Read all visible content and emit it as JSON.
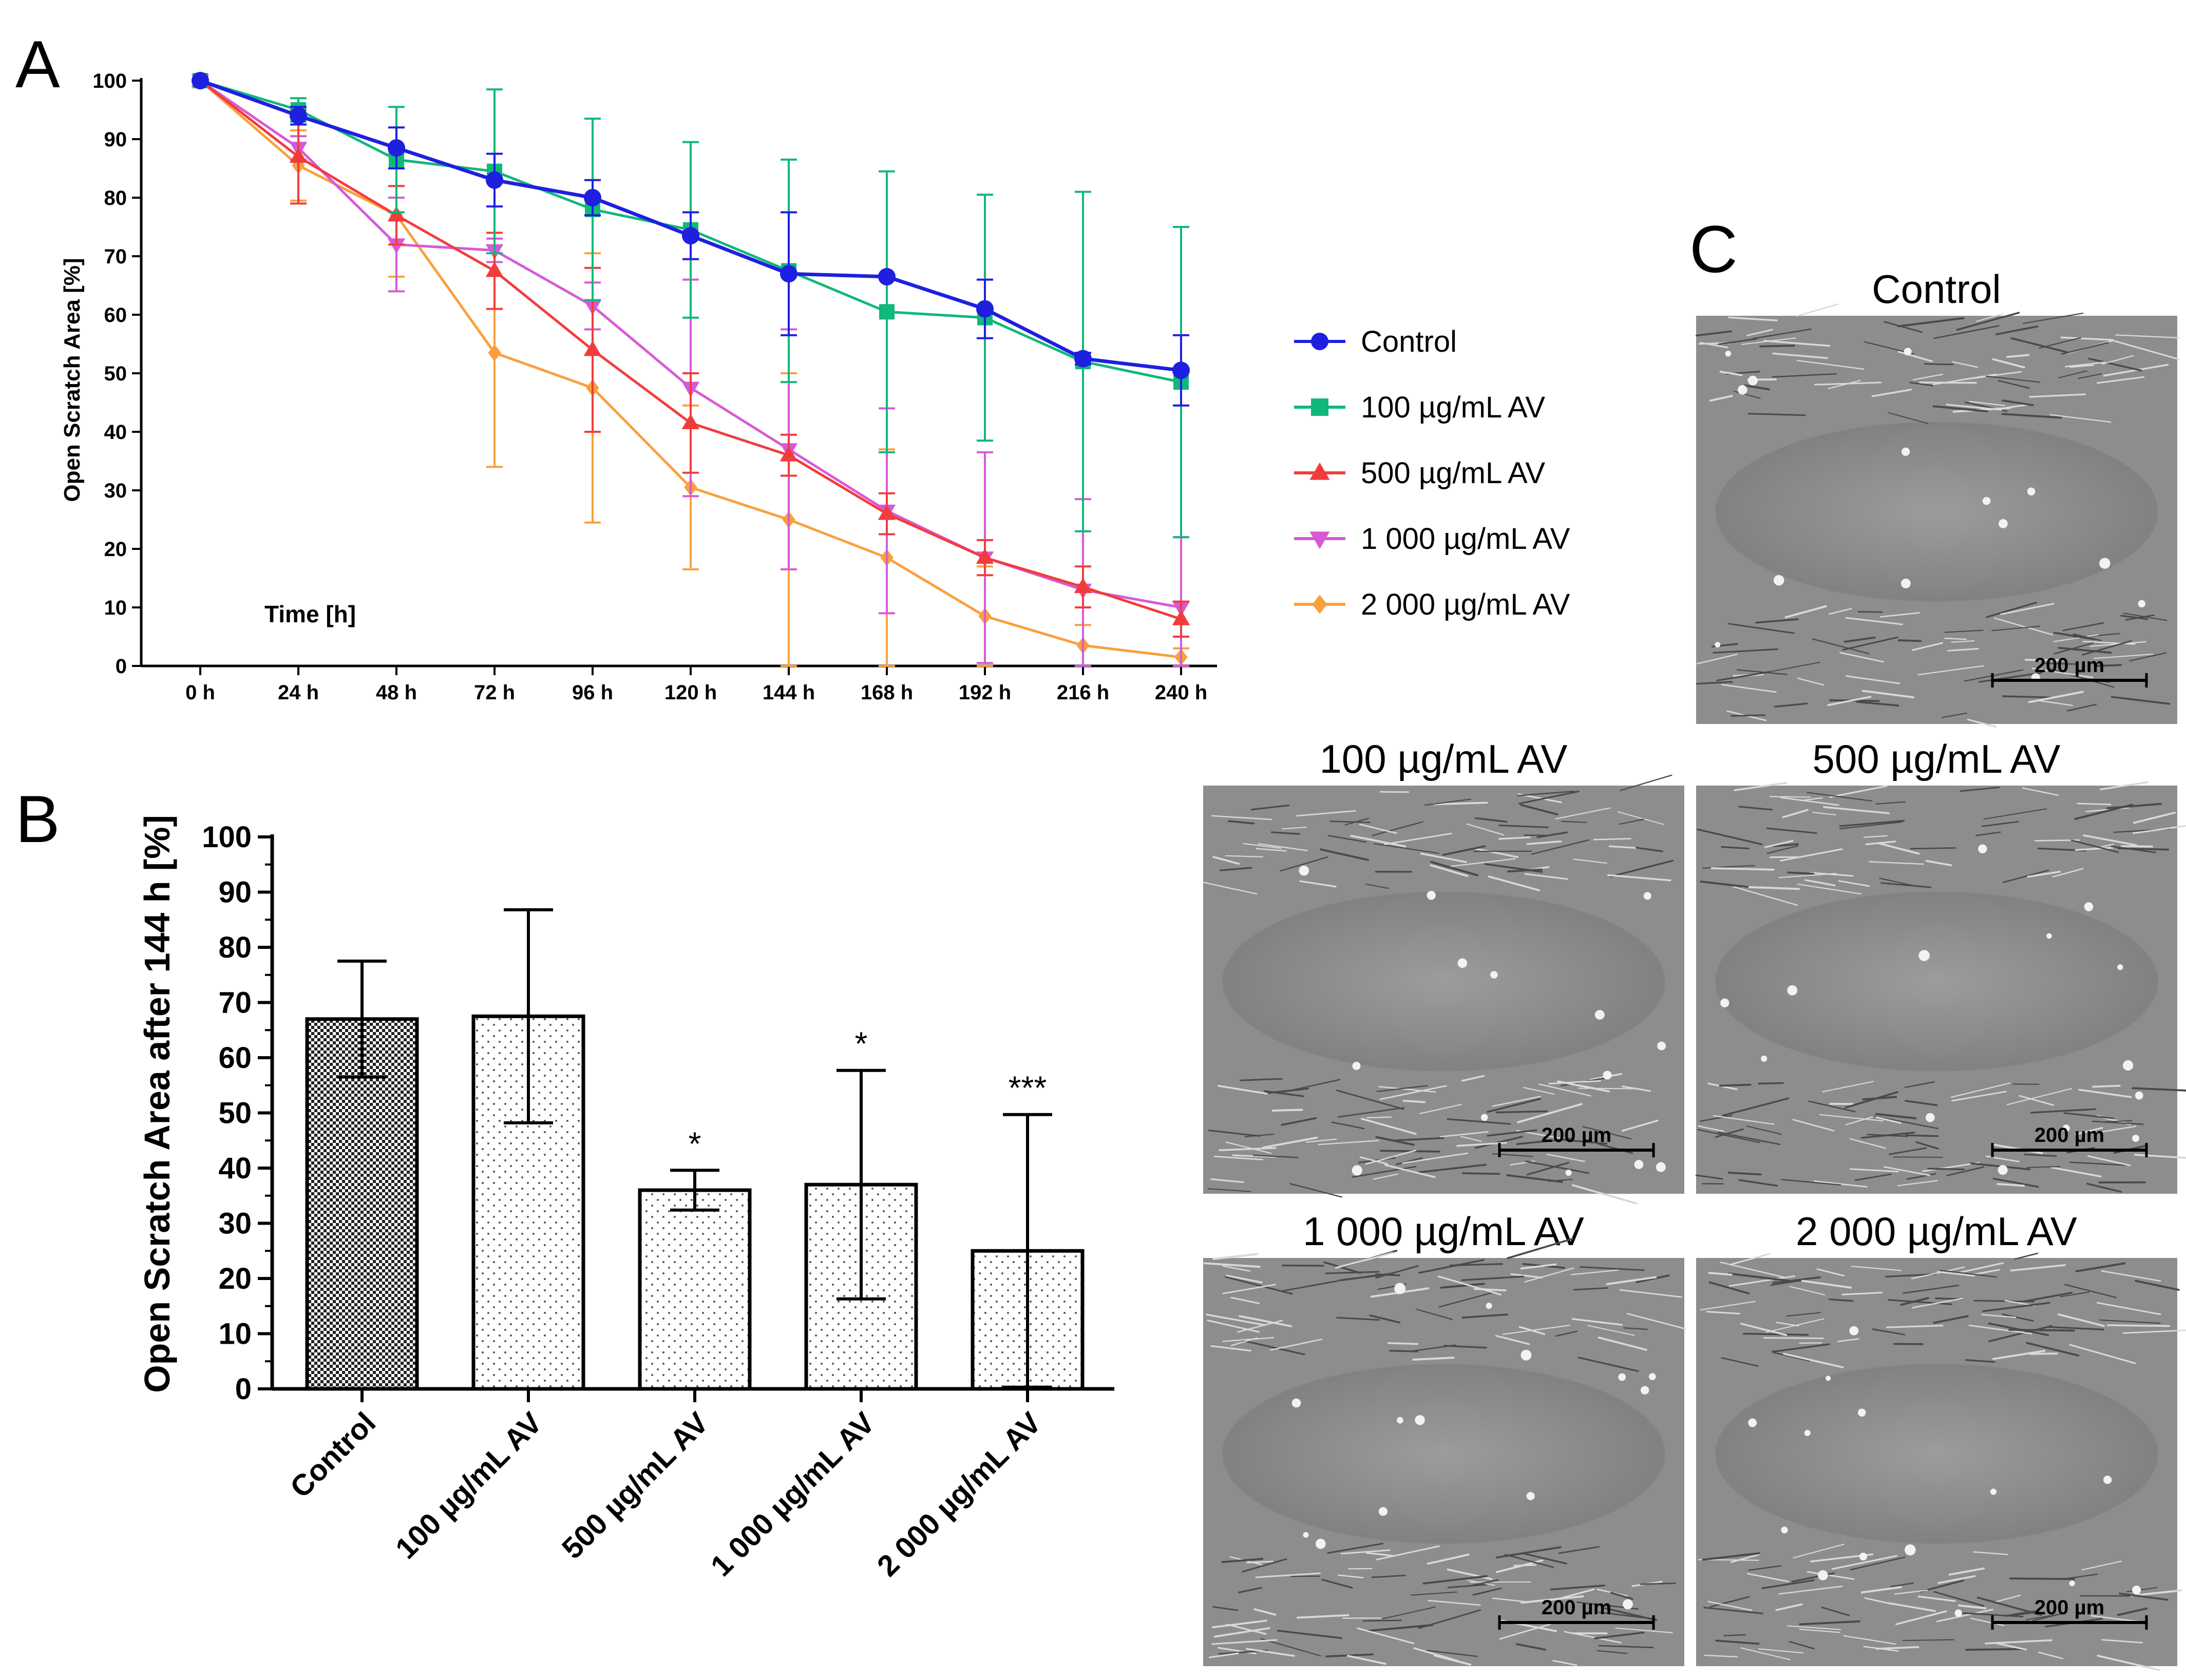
{
  "panels": {
    "a_label": "A",
    "b_label": "B",
    "c_label": "C"
  },
  "colors": {
    "control": "#1f1fe0",
    "av100": "#10b87a",
    "av500": "#f23c3c",
    "av1000": "#d65ad6",
    "av2000": "#f9a03c"
  },
  "chart_data": [
    {
      "id": "A",
      "type": "line",
      "title": "",
      "xlabel": "Time [h]",
      "ylabel": "Open Scratch Area [%]",
      "ylim": [
        0,
        100
      ],
      "yticks": [
        0,
        10,
        20,
        30,
        40,
        50,
        60,
        70,
        80,
        90,
        100
      ],
      "categories": [
        "0 h",
        "24 h",
        "48 h",
        "72 h",
        "96 h",
        "120 h",
        "144 h",
        "168 h",
        "192 h",
        "216 h",
        "240 h"
      ],
      "legend_position": "right",
      "series": [
        {
          "name": "Control",
          "marker": "circle",
          "values": [
            100,
            94,
            88.5,
            83,
            80,
            73.5,
            67,
            66.5,
            61,
            52.5,
            50.5
          ],
          "error": [
            0,
            1.5,
            3.5,
            4.5,
            3,
            4,
            10.5,
            0,
            5,
            1,
            6
          ]
        },
        {
          "name": "100 µg/mL AV",
          "marker": "square",
          "values": [
            100,
            95,
            86.5,
            84.5,
            78,
            74.5,
            67.5,
            60.5,
            59.5,
            52,
            48.5
          ],
          "error": [
            0,
            2,
            9,
            14,
            15.5,
            15,
            19,
            24,
            21,
            29,
            26.5
          ]
        },
        {
          "name": "500 µg/mL AV",
          "marker": "triangle-up",
          "values": [
            100,
            87,
            77,
            67.5,
            54,
            41.5,
            36,
            26,
            18.5,
            13.5,
            8
          ],
          "error": [
            0,
            8,
            5,
            6.5,
            14,
            8.5,
            3.5,
            3.5,
            3,
            3.5,
            3
          ]
        },
        {
          "name": "1 000 µg/mL AV",
          "marker": "triangle-down",
          "values": [
            100,
            88.5,
            72,
            71,
            61.5,
            47.5,
            37,
            26.5,
            18.5,
            13,
            10
          ],
          "error": [
            0,
            2,
            8,
            2,
            4,
            18.5,
            20.5,
            17.5,
            18,
            15.5,
            12
          ]
        },
        {
          "name": "2 000 µg/mL AV",
          "marker": "diamond",
          "values": [
            100,
            85.5,
            77,
            53.5,
            47.5,
            30.5,
            25,
            18.5,
            8.5,
            3.5,
            1.5
          ],
          "error": [
            0,
            6,
            10.5,
            19.5,
            23,
            14,
            25,
            18.5,
            8.5,
            3.5,
            1.5
          ]
        }
      ]
    },
    {
      "id": "B",
      "type": "bar",
      "title": "",
      "xlabel": "",
      "ylabel": "Open Scratch Area after 144 h [%]",
      "ylim": [
        0,
        100
      ],
      "yticks": [
        0,
        10,
        20,
        30,
        40,
        50,
        60,
        70,
        80,
        90,
        100
      ],
      "categories": [
        "Control",
        "100 µg/mL AV",
        "500 µg/mL AV",
        "1 000 µg/mL AV",
        "2 000 µg/mL AV"
      ],
      "values": [
        67,
        67.5,
        36,
        37,
        25
      ],
      "error": [
        10.5,
        19.3,
        3.6,
        20.7,
        24.7
      ],
      "significance": [
        "",
        "",
        "*",
        "*",
        "***"
      ]
    }
  ],
  "micrographs": {
    "panel_c_title": "Control",
    "items": [
      {
        "title": "Control",
        "scale": "200 µm"
      },
      {
        "title": "100 µg/mL AV",
        "scale": "200 µm"
      },
      {
        "title": "500 µg/mL AV",
        "scale": "200 µm"
      },
      {
        "title": "1 000 µg/mL AV",
        "scale": "200 µm"
      },
      {
        "title": "2 000 µg/mL AV",
        "scale": "200 µm"
      }
    ]
  }
}
